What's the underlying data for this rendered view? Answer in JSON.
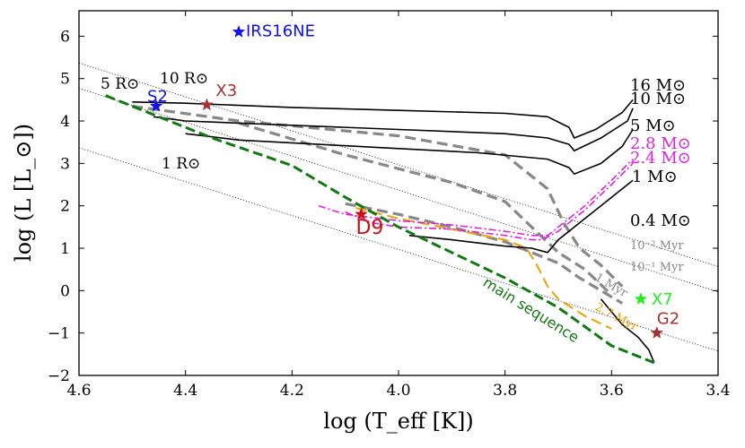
{
  "chart_data": {
    "type": "line",
    "title": "",
    "xlabel": "log (T_eff [K])",
    "ylabel": "log (L [L_⊙])",
    "xlim": [
      4.6,
      3.4
    ],
    "ylim": [
      -2,
      6.6
    ],
    "x_ticks": [
      4.6,
      4.4,
      4.2,
      4.0,
      3.8,
      3.6,
      3.4
    ],
    "x_tick_labels": [
      "4.6",
      "4.4",
      "4.2",
      "4.0",
      "3.8",
      "3.6",
      "3.4"
    ],
    "y_ticks": [
      -2,
      -1,
      0,
      1,
      2,
      3,
      4,
      5,
      6
    ],
    "y_tick_labels": [
      "−2",
      "−1",
      "0",
      "1",
      "2",
      "3",
      "4",
      "5",
      "6"
    ],
    "grid": false,
    "radius_lines": [
      {
        "label": "1 R⊙",
        "points": [
          [
            4.6,
            3.37
          ],
          [
            3.4,
            -1.43
          ]
        ]
      },
      {
        "label": "5 R⊙",
        "points": [
          [
            4.6,
            4.77
          ],
          [
            3.4,
            -0.03
          ]
        ]
      },
      {
        "label": "10 R⊙",
        "points": [
          [
            4.6,
            5.37
          ],
          [
            3.4,
            0.57
          ]
        ]
      }
    ],
    "radius_labels": [
      "5 R⊙",
      "10 R⊙",
      "1 R⊙"
    ],
    "main_sequence": {
      "label": "main sequence",
      "color": "#107a10",
      "points": [
        [
          4.55,
          4.6
        ],
        [
          4.47,
          4.2
        ],
        [
          4.35,
          3.6
        ],
        [
          4.2,
          2.95
        ],
        [
          4.1,
          2.2
        ],
        [
          4.0,
          1.5
        ],
        [
          3.9,
          0.9
        ],
        [
          3.8,
          0.3
        ],
        [
          3.7,
          -0.4
        ],
        [
          3.6,
          -1.3
        ],
        [
          3.52,
          -1.7
        ]
      ]
    },
    "tracks": [
      {
        "name": "16 M⊙",
        "color": "#000000",
        "points": [
          [
            4.5,
            4.45
          ],
          [
            4.4,
            4.42
          ],
          [
            4.2,
            4.32
          ],
          [
            4.0,
            4.25
          ],
          [
            3.8,
            4.18
          ],
          [
            3.72,
            4.1
          ],
          [
            3.68,
            3.85
          ],
          [
            3.67,
            3.6
          ],
          [
            3.63,
            3.8
          ],
          [
            3.58,
            4.2
          ],
          [
            3.56,
            4.5
          ]
        ]
      },
      {
        "name": "10 M⊙",
        "color": "#000000",
        "points": [
          [
            4.46,
            4.1
          ],
          [
            4.4,
            4.0
          ],
          [
            4.2,
            3.9
          ],
          [
            4.0,
            3.8
          ],
          [
            3.8,
            3.7
          ],
          [
            3.72,
            3.6
          ],
          [
            3.68,
            3.45
          ],
          [
            3.67,
            3.3
          ],
          [
            3.62,
            3.6
          ],
          [
            3.57,
            4.0
          ],
          [
            3.56,
            4.3
          ]
        ]
      },
      {
        "name": "5 M⊙",
        "color": "#000000",
        "points": [
          [
            4.4,
            3.7
          ],
          [
            4.3,
            3.55
          ],
          [
            4.15,
            3.45
          ],
          [
            4.0,
            3.35
          ],
          [
            3.85,
            3.25
          ],
          [
            3.72,
            3.1
          ],
          [
            3.68,
            2.9
          ],
          [
            3.67,
            2.75
          ],
          [
            3.62,
            3.0
          ],
          [
            3.58,
            3.4
          ],
          [
            3.56,
            3.8
          ]
        ]
      },
      {
        "name": "2.8 M⊙",
        "color": "#e020e0",
        "points": [
          [
            4.15,
            2.0
          ],
          [
            4.1,
            1.8
          ],
          [
            4.0,
            1.65
          ],
          [
            3.9,
            1.55
          ],
          [
            3.8,
            1.4
          ],
          [
            3.75,
            1.3
          ],
          [
            3.72,
            1.3
          ],
          [
            3.7,
            1.5
          ],
          [
            3.65,
            2.0
          ],
          [
            3.6,
            2.6
          ],
          [
            3.56,
            3.1
          ]
        ]
      },
      {
        "name": "2.4 M⊙",
        "color": "#e020e0",
        "points": [
          [
            4.1,
            1.85
          ],
          [
            4.05,
            1.6
          ],
          [
            4.0,
            1.5
          ],
          [
            3.9,
            1.45
          ],
          [
            3.8,
            1.3
          ],
          [
            3.75,
            1.2
          ],
          [
            3.73,
            1.2
          ],
          [
            3.7,
            1.4
          ],
          [
            3.65,
            1.9
          ],
          [
            3.6,
            2.5
          ],
          [
            3.56,
            3.0
          ]
        ]
      },
      {
        "name": "1 M⊙",
        "color": "#000000",
        "points": [
          [
            3.98,
            1.3
          ],
          [
            3.9,
            1.2
          ],
          [
            3.8,
            1.05
          ],
          [
            3.75,
            1.0
          ],
          [
            3.72,
            0.9
          ],
          [
            3.7,
            1.2
          ],
          [
            3.65,
            1.7
          ],
          [
            3.6,
            2.2
          ],
          [
            3.56,
            2.6
          ]
        ]
      },
      {
        "name": "0.4 M⊙",
        "color": "#000000",
        "points": [
          [
            3.62,
            -0.2
          ],
          [
            3.6,
            -0.5
          ],
          [
            3.58,
            -0.8
          ],
          [
            3.55,
            -1.1
          ],
          [
            3.53,
            -1.4
          ],
          [
            3.52,
            -1.7
          ]
        ]
      }
    ],
    "isochrones": [
      {
        "name": "10⁻² Myr",
        "color": "#888888",
        "points": [
          [
            4.5,
            4.35
          ],
          [
            4.3,
            4.0
          ],
          [
            4.0,
            3.65
          ],
          [
            3.8,
            3.2
          ],
          [
            3.72,
            2.4
          ],
          [
            3.69,
            1.6
          ],
          [
            3.66,
            1.0
          ],
          [
            3.62,
            0.6
          ],
          [
            3.58,
            0.1
          ]
        ]
      },
      {
        "name": "10⁻¹ Myr",
        "color": "#888888",
        "points": [
          [
            4.3,
            3.95
          ],
          [
            4.1,
            3.2
          ],
          [
            3.9,
            2.55
          ],
          [
            3.8,
            2.1
          ],
          [
            3.75,
            1.5
          ],
          [
            3.7,
            0.9
          ],
          [
            3.65,
            0.5
          ],
          [
            3.6,
            -0.1
          ]
        ]
      },
      {
        "name": "1 Myr",
        "color": "#888888",
        "points": [
          [
            4.1,
            2.05
          ],
          [
            4.0,
            1.8
          ],
          [
            3.9,
            1.5
          ],
          [
            3.8,
            1.15
          ],
          [
            3.75,
            0.9
          ],
          [
            3.7,
            0.65
          ],
          [
            3.66,
            0.3
          ],
          [
            3.62,
            0.0
          ],
          [
            3.58,
            -0.3
          ]
        ]
      },
      {
        "name": "2.7 Myr",
        "color": "#f0a000",
        "points": [
          [
            4.08,
            1.95
          ],
          [
            4.0,
            1.7
          ],
          [
            3.9,
            1.45
          ],
          [
            3.8,
            1.2
          ],
          [
            3.76,
            1.0
          ],
          [
            3.74,
            0.6
          ],
          [
            3.72,
            0.1
          ],
          [
            3.7,
            -0.2
          ],
          [
            3.65,
            -0.6
          ],
          [
            3.6,
            -0.9
          ]
        ]
      }
    ],
    "stars": [
      {
        "name": "IRS16NE",
        "x": 4.3,
        "y": 6.1,
        "color": "#1010ee"
      },
      {
        "name": "S2",
        "x": 4.455,
        "y": 4.35,
        "color": "#1010ee"
      },
      {
        "name": "X3",
        "x": 4.36,
        "y": 4.38,
        "color": "#a83030"
      },
      {
        "name": "D9",
        "x": 4.07,
        "y": 1.8,
        "color": "#cc1010"
      },
      {
        "name": "X7",
        "x": 3.545,
        "y": -0.2,
        "color": "#20ee20"
      },
      {
        "name": "G2",
        "x": 3.515,
        "y": -1.0,
        "color": "#a83030"
      }
    ]
  }
}
